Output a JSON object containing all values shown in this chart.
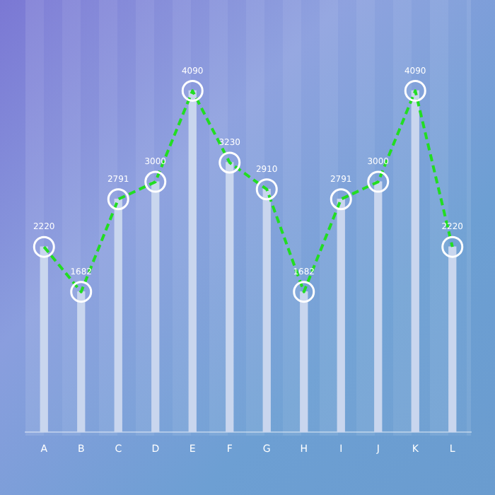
{
  "chart_data": {
    "type": "line",
    "categories": [
      "A",
      "B",
      "C",
      "D",
      "E",
      "F",
      "G",
      "H",
      "I",
      "J",
      "K",
      "L"
    ],
    "series": [
      {
        "type": "bar",
        "color": "#c9d6ee",
        "values": [
          2220,
          1682,
          2791,
          3000,
          4090,
          3230,
          2910,
          1682,
          2791,
          3000,
          4090,
          2220
        ]
      },
      {
        "color": "#22dd22",
        "values": [
          2220,
          1682,
          2791,
          3000,
          4090,
          3230,
          2910,
          1682,
          2791,
          3000,
          4090,
          2220
        ],
        "value_labels": [
          "2220",
          "1682",
          "2791",
          "3000",
          "4090",
          "3230",
          "2910",
          "1682",
          "2791",
          "3000",
          "4090",
          "2220"
        ]
      }
    ],
    "marker": "circle",
    "line_style": "dashed",
    "grid": false,
    "legend": false,
    "tick_labels": "x"
  }
}
